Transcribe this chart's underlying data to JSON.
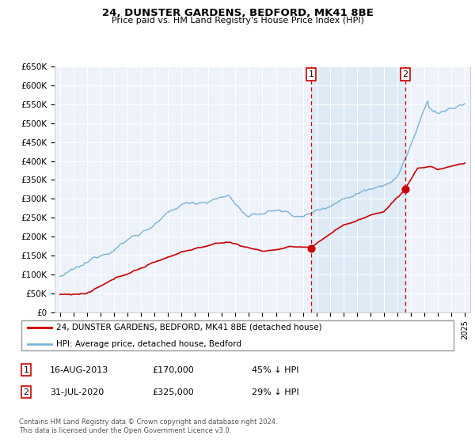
{
  "title": "24, DUNSTER GARDENS, BEDFORD, MK41 8BE",
  "subtitle": "Price paid vs. HM Land Registry's House Price Index (HPI)",
  "ylabel_ticks": [
    "£0",
    "£50K",
    "£100K",
    "£150K",
    "£200K",
    "£250K",
    "£300K",
    "£350K",
    "£400K",
    "£450K",
    "£500K",
    "£550K",
    "£600K",
    "£650K"
  ],
  "ylim": [
    0,
    650000
  ],
  "ytick_values": [
    0,
    50000,
    100000,
    150000,
    200000,
    250000,
    300000,
    350000,
    400000,
    450000,
    500000,
    550000,
    600000,
    650000
  ],
  "hpi_color": "#7ab3d8",
  "hpi_fill_color": "#d8e8f5",
  "price_color": "#cc0000",
  "vline_color": "#cc0000",
  "bg_color": "#edf2fb",
  "grid_color": "#ffffff",
  "sale1_x": 2013.62,
  "sale1_price": 170000,
  "sale2_x": 2020.58,
  "sale2_price": 325000,
  "legend_entry1": "24, DUNSTER GARDENS, BEDFORD, MK41 8BE (detached house)",
  "legend_entry2": "HPI: Average price, detached house, Bedford",
  "footnote1": "Contains HM Land Registry data © Crown copyright and database right 2024.",
  "footnote2": "This data is licensed under the Open Government Licence v3.0.",
  "table": [
    {
      "num": "1",
      "date": "16-AUG-2013",
      "price": "£170,000",
      "hpi": "45% ↓ HPI"
    },
    {
      "num": "2",
      "date": "31-JUL-2020",
      "price": "£325,000",
      "hpi": "29% ↓ HPI"
    }
  ]
}
